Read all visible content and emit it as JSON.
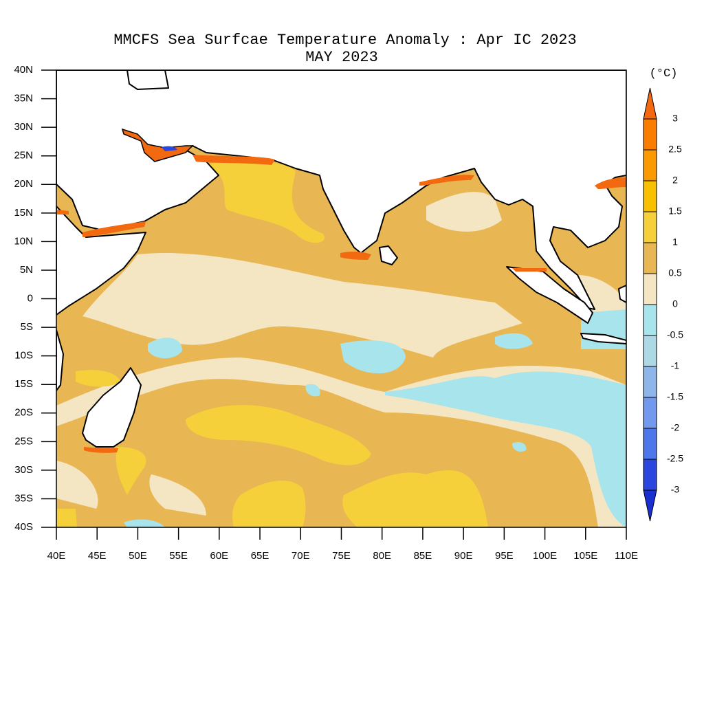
{
  "title": [
    "MMCFS Sea Surfcae Temperature Anomaly : Apr IC 2023",
    "MAY 2023"
  ],
  "map": {
    "lon_labels": [
      "40E",
      "45E",
      "50E",
      "55E",
      "60E",
      "65E",
      "70E",
      "75E",
      "80E",
      "85E",
      "90E",
      "95E",
      "100E",
      "105E",
      "110E"
    ],
    "lat_labels": [
      "40N",
      "35N",
      "30N",
      "25N",
      "20N",
      "15N",
      "10N",
      "5N",
      "0",
      "5S",
      "10S",
      "15S",
      "20S",
      "25S",
      "30S",
      "35S",
      "40S"
    ]
  },
  "colorbar": {
    "unit": "(°C)",
    "levels": [
      3,
      2.5,
      2,
      1.5,
      1,
      0.5,
      0,
      -0.5,
      -1,
      -1.5,
      -2,
      -2.5,
      -3
    ],
    "colors": [
      "#f2690f",
      "#fa7d00",
      "#fb9a00",
      "#f8c000",
      "#f5d03a",
      "#e8b653",
      "#f5e6c3",
      "#a8e4ec",
      "#acd9e3",
      "#8fb6ea",
      "#7399ef",
      "#4f77ec",
      "#2b46df",
      "#1a2fd0"
    ]
  }
}
